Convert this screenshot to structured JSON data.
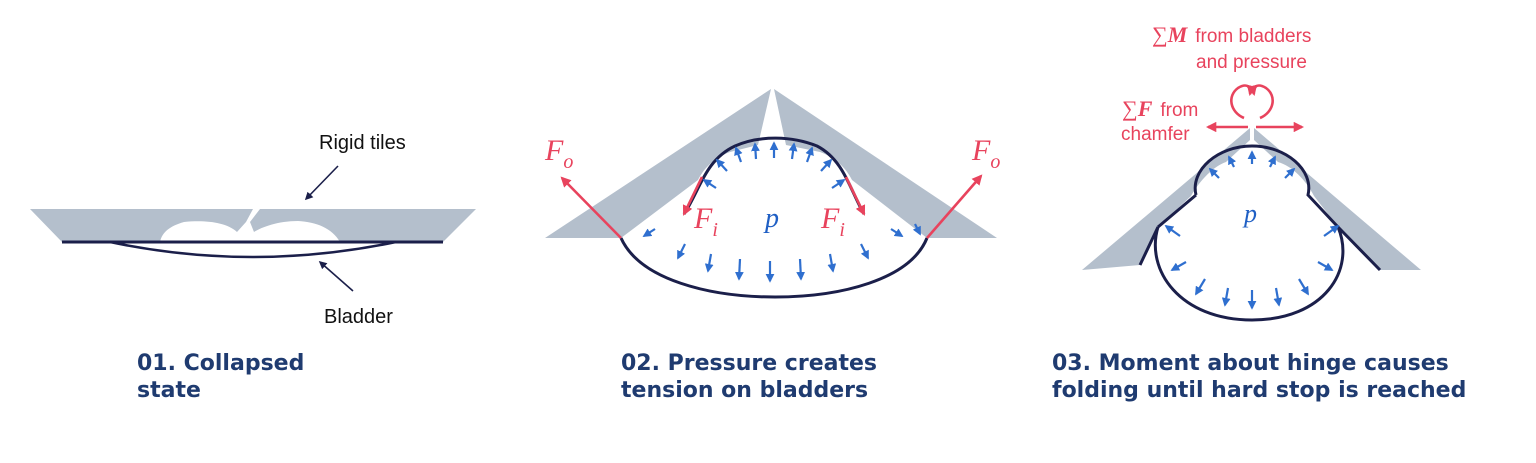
{
  "colors": {
    "tile": "#b4bfcc",
    "bladder": "#1b1f4a",
    "pressure_arrow": "#2f6fcf",
    "force": "#e8435d",
    "caption": "#1f3b70"
  },
  "panel1": {
    "rigid_tiles_label": "Rigid tiles",
    "bladder_label": "Bladder",
    "caption_line1": "01. Collapsed",
    "caption_line2": "state"
  },
  "panel2": {
    "fo_main": "F",
    "fo_sub": "o",
    "fi_main": "F",
    "fi_sub": "i",
    "pressure_symbol": "p",
    "caption_line1": "02. Pressure creates",
    "caption_line2": "tension on bladders"
  },
  "panel3": {
    "sum_symbol": "∑",
    "moment_symbol": "M",
    "moment_text": "from bladders",
    "moment_text2": "and pressure",
    "force_symbol": "F",
    "force_text": "from",
    "force_text2": "chamfer",
    "pressure_symbol": "p",
    "caption_line1": "03. Moment about hinge causes",
    "caption_line2": "folding until hard stop is reached"
  }
}
